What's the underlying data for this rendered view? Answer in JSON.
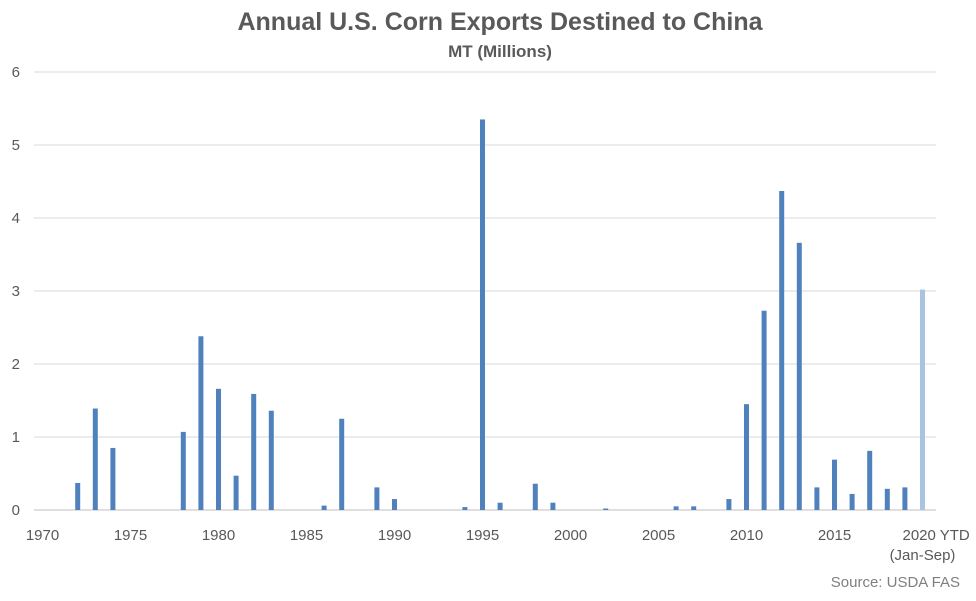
{
  "chart_data": {
    "type": "bar",
    "title": "Annual U.S. Corn Exports Destined to China",
    "subtitle": "MT (Millions)",
    "source": "Source: USDA FAS",
    "xlabel": "",
    "ylabel": "",
    "ylim": [
      0,
      6
    ],
    "y_ticks": [
      0,
      1,
      2,
      3,
      4,
      5,
      6
    ],
    "grid": true,
    "legend": "none",
    "x_tick_labels": [
      "1970",
      "1975",
      "1980",
      "1985",
      "1990",
      "1995",
      "2000",
      "2005",
      "2010",
      "2015"
    ],
    "last_tick_label": [
      "2020 YTD",
      "(Jan-Sep)"
    ],
    "colors": {
      "bar": "#4f81bd",
      "bar_ytd": "#a8c4e0",
      "grid": "#d9d9d9",
      "axis": "#bfbfbf"
    },
    "categories": [
      1970,
      1971,
      1972,
      1973,
      1974,
      1975,
      1976,
      1977,
      1978,
      1979,
      1980,
      1981,
      1982,
      1983,
      1984,
      1985,
      1986,
      1987,
      1988,
      1989,
      1990,
      1991,
      1992,
      1993,
      1994,
      1995,
      1996,
      1997,
      1998,
      1999,
      2000,
      2001,
      2002,
      2003,
      2004,
      2005,
      2006,
      2007,
      2008,
      2009,
      2010,
      2011,
      2012,
      2013,
      2014,
      2015,
      2016,
      2017,
      2018,
      2019,
      2020
    ],
    "values": [
      0,
      0,
      0.37,
      1.39,
      0.85,
      0,
      0,
      0,
      1.07,
      2.38,
      1.66,
      0.47,
      1.59,
      1.36,
      0,
      0,
      0.06,
      1.25,
      0,
      0.31,
      0.15,
      0,
      0,
      0,
      0.04,
      5.35,
      0.1,
      0,
      0.36,
      0.1,
      0,
      0,
      0.02,
      0,
      0,
      0,
      0.05,
      0.05,
      0,
      0.15,
      1.45,
      2.73,
      4.37,
      3.66,
      0.31,
      0.69,
      0.22,
      0.81,
      0.29,
      0.31,
      3.02
    ],
    "ytd_category": 2020
  }
}
